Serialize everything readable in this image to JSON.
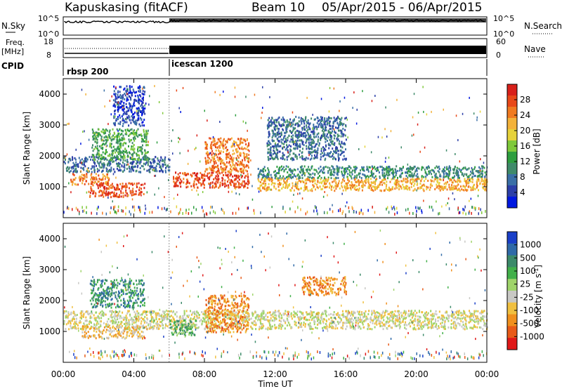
{
  "header": {
    "station": "Kapuskasing (fitACF)",
    "beam": "Beam 10",
    "dates": "05/Apr/2015 - 06/Apr/2015"
  },
  "sky_panel": {
    "left_label": "N.Sky",
    "right_label": "N.Search",
    "left_ticks": [
      "10^5",
      "10^0"
    ],
    "right_ticks": [
      "10^5",
      "10^0"
    ]
  },
  "freq_panel": {
    "left_label_1": "Freq.",
    "left_label_2": "[MHz]",
    "right_label": "Nave",
    "left_ticks": [
      "18",
      "8"
    ],
    "right_ticks": [
      "60",
      "0"
    ]
  },
  "cpid_panel": {
    "label": "CPID",
    "modes": [
      {
        "name": "rbsp 200",
        "start_hour": 0
      },
      {
        "name": "icescan 1200",
        "start_hour": 6
      }
    ]
  },
  "chart_data": [
    {
      "type": "heatmap",
      "title": "",
      "ylabel": "Slant Range [km]",
      "xlabel": "",
      "xlim": [
        0,
        24
      ],
      "ylim": [
        0,
        4500
      ],
      "yticks": [
        1000,
        2000,
        3000,
        4000
      ],
      "colorbar": {
        "label": "Power [dB]",
        "ticks": [
          "28",
          "24",
          "20",
          "16",
          "12",
          "8",
          "4"
        ],
        "colors": [
          "#0018e0",
          "#2c3fa8",
          "#3a6fa6",
          "#3f8a6a",
          "#2e9e3f",
          "#7fc93a",
          "#e6d23a",
          "#f3b23a",
          "#f07a20",
          "#e84818",
          "#d8201a"
        ]
      },
      "regions": [
        {
          "t0": 0.0,
          "t1": 6.0,
          "r0": 1500,
          "r1": 2000,
          "level": 2
        },
        {
          "t0": 0.4,
          "t1": 2.6,
          "r0": 1100,
          "r1": 1450,
          "level": 8
        },
        {
          "t0": 1.4,
          "t1": 4.6,
          "r0": 700,
          "r1": 1150,
          "level": 9
        },
        {
          "t0": 1.6,
          "t1": 4.8,
          "r0": 1900,
          "r1": 2900,
          "level": 4
        },
        {
          "t0": 2.8,
          "t1": 4.6,
          "r0": 3000,
          "r1": 4300,
          "level": 1
        },
        {
          "t0": 6.2,
          "t1": 10.5,
          "r0": 1000,
          "r1": 1500,
          "level": 9
        },
        {
          "t0": 8.0,
          "t1": 10.5,
          "r0": 1500,
          "r1": 2600,
          "level": 8
        },
        {
          "t0": 11.0,
          "t1": 24.0,
          "r0": 1300,
          "r1": 1700,
          "level": 3
        },
        {
          "t0": 11.0,
          "t1": 24.0,
          "r0": 900,
          "r1": 1300,
          "level": 7
        },
        {
          "t0": 11.5,
          "t1": 16.0,
          "r0": 1900,
          "r1": 3300,
          "level": 2
        }
      ]
    },
    {
      "type": "heatmap",
      "title": "",
      "ylabel": "Slant Range [km]",
      "xlabel": "Time UT",
      "xlim": [
        0,
        24
      ],
      "ylim": [
        0,
        4500
      ],
      "yticks": [
        1000,
        2000,
        3000,
        4000
      ],
      "xticks": [
        "00:00",
        "04:00",
        "08:00",
        "12:00",
        "16:00",
        "20:00",
        "00:00"
      ],
      "colorbar": {
        "label": "Velocity [m s",
        "label_sup": "-1",
        "label_close": "]",
        "ticks": [
          "1000",
          "500",
          "100",
          "25",
          "-25",
          "-100",
          "-500",
          "-1000"
        ],
        "colors": [
          "#1a3fc8",
          "#2f6aa8",
          "#3c8a6a",
          "#42b04a",
          "#9fd46a",
          "#c8c8c4",
          "#f0c040",
          "#f0901e",
          "#e85a18",
          "#e01818"
        ]
      },
      "regions": [
        {
          "t0": 0.0,
          "t1": 24.0,
          "r0": 1100,
          "r1": 1700,
          "level": 5
        },
        {
          "t0": 1.5,
          "t1": 4.6,
          "r0": 1800,
          "r1": 2700,
          "level": 2
        },
        {
          "t0": 1.0,
          "t1": 4.6,
          "r0": 800,
          "r1": 1200,
          "level": 6
        },
        {
          "t0": 6.0,
          "t1": 7.5,
          "r0": 900,
          "r1": 1400,
          "level": 3
        },
        {
          "t0": 8.0,
          "t1": 10.5,
          "r0": 1000,
          "r1": 2200,
          "level": 7
        },
        {
          "t0": 13.5,
          "t1": 16.0,
          "r0": 2200,
          "r1": 2800,
          "level": 7
        }
      ]
    }
  ]
}
